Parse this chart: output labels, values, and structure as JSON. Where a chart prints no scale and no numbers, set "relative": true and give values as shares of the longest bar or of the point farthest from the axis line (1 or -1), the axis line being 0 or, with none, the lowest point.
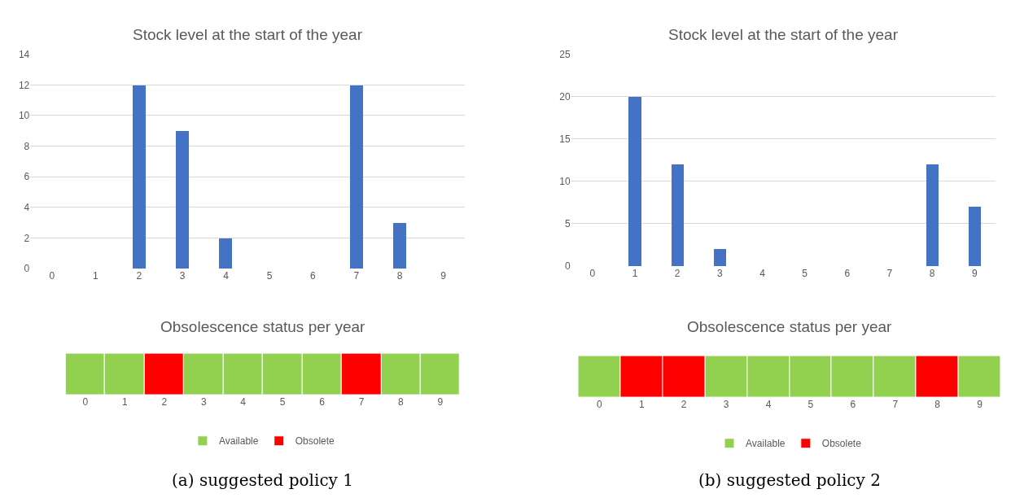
{
  "chart_data": [
    {
      "type": "bar",
      "title": "Stock level at the start of the year",
      "categories": [
        "0",
        "1",
        "2",
        "3",
        "4",
        "5",
        "6",
        "7",
        "8",
        "9"
      ],
      "values": [
        0,
        0,
        12,
        9,
        2,
        0,
        0,
        12,
        3,
        0
      ],
      "color": "#4472c4",
      "ylim": [
        0,
        14
      ],
      "yticks": [
        0,
        2,
        4,
        6,
        8,
        10,
        12,
        14
      ],
      "grid": "y"
    },
    {
      "type": "bar",
      "title": "Obsolescence status per year",
      "categories": [
        "0",
        "1",
        "2",
        "3",
        "4",
        "5",
        "6",
        "7",
        "8",
        "9"
      ],
      "relative": true,
      "legend": "bottom",
      "tick_labels": "x",
      "series": [
        {
          "name": "Available",
          "color": "#92d050",
          "values": [
            1,
            1,
            null,
            1,
            1,
            1,
            1,
            null,
            1,
            1
          ]
        },
        {
          "name": "Obsolete",
          "color": "#ff0000",
          "values": [
            null,
            null,
            1,
            null,
            null,
            null,
            null,
            1,
            null,
            null
          ]
        }
      ],
      "annotations": [
        "(a) suggested policy 1"
      ]
    },
    {
      "type": "bar",
      "title": "Stock level at the start of the year",
      "categories": [
        "0",
        "1",
        "2",
        "3",
        "4",
        "5",
        "6",
        "7",
        "8",
        "9"
      ],
      "values": [
        0,
        20,
        12,
        2,
        0,
        0,
        0,
        0,
        12,
        7
      ],
      "color": "#4472c4",
      "ylim": [
        0,
        25
      ],
      "yticks": [
        0,
        5,
        10,
        15,
        20,
        25
      ],
      "grid": "y"
    },
    {
      "type": "bar",
      "title": "Obsolescence status per year",
      "categories": [
        "0",
        "1",
        "2",
        "3",
        "4",
        "5",
        "6",
        "7",
        "8",
        "9"
      ],
      "relative": true,
      "legend": "bottom",
      "tick_labels": "x",
      "series": [
        {
          "name": "Available",
          "color": "#92d050",
          "values": [
            1,
            null,
            null,
            1,
            1,
            1,
            1,
            1,
            null,
            1
          ]
        },
        {
          "name": "Obsolete",
          "color": "#ff0000",
          "values": [
            null,
            1,
            1,
            null,
            null,
            null,
            null,
            null,
            1,
            null
          ]
        }
      ],
      "annotations": [
        "(b) suggested policy 2"
      ]
    }
  ]
}
